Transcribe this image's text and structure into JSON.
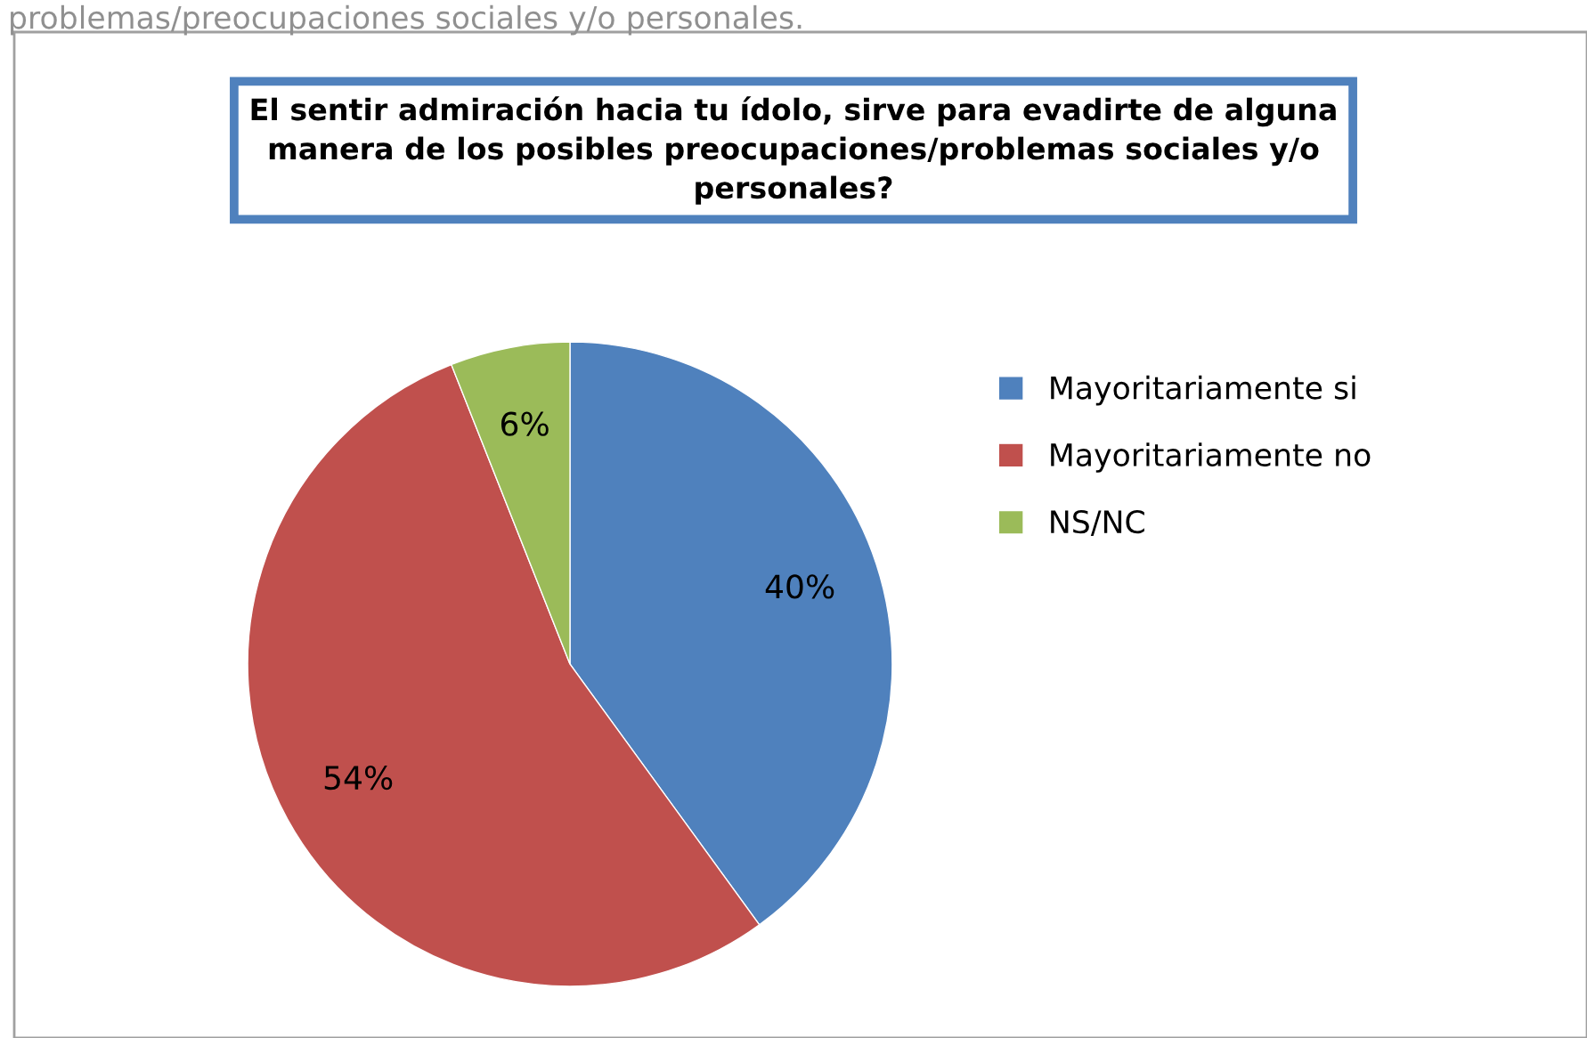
{
  "chart_data": {
    "type": "pie",
    "title": "El sentir admiración hacia tu ídolo, sirve para evadirte de alguna manera de los posibles preocupaciones/problemas sociales y/o personales?",
    "categories": [
      "Mayoritariamente si",
      "Mayoritariamente no",
      "NS/NC"
    ],
    "values": [
      40,
      54,
      6
    ],
    "colors": [
      "#4f81bd",
      "#c0504d",
      "#9bbb59"
    ],
    "value_labels": [
      "40%",
      "54%",
      "6%"
    ],
    "legend": "right",
    "annotations": [
      "problemas/preocupaciones sociales y/o personales."
    ]
  }
}
